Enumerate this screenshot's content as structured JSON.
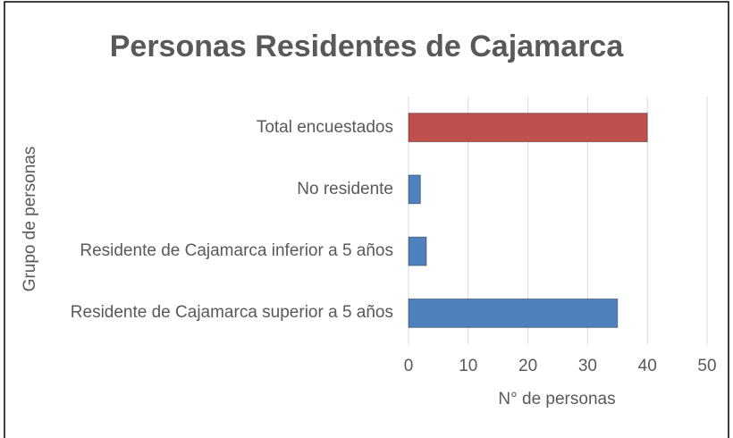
{
  "chart_data": {
    "type": "bar",
    "orientation": "horizontal",
    "title": "Personas Residentes de Cajamarca",
    "x_label": "N° de personas",
    "y_label": "Grupo de personas",
    "categories": [
      "Total encuestados",
      "No residente",
      "Residente de Cajamarca inferior a 5 años",
      "Residente de Cajamarca superior a 5 años"
    ],
    "values": [
      40,
      2,
      3,
      35
    ],
    "colors": [
      "#c0504d",
      "#4f81bd",
      "#4f81bd",
      "#4f81bd"
    ],
    "xlim": [
      0,
      50
    ],
    "xticks": [
      0,
      10,
      20,
      30,
      40,
      50
    ],
    "grid": true
  }
}
